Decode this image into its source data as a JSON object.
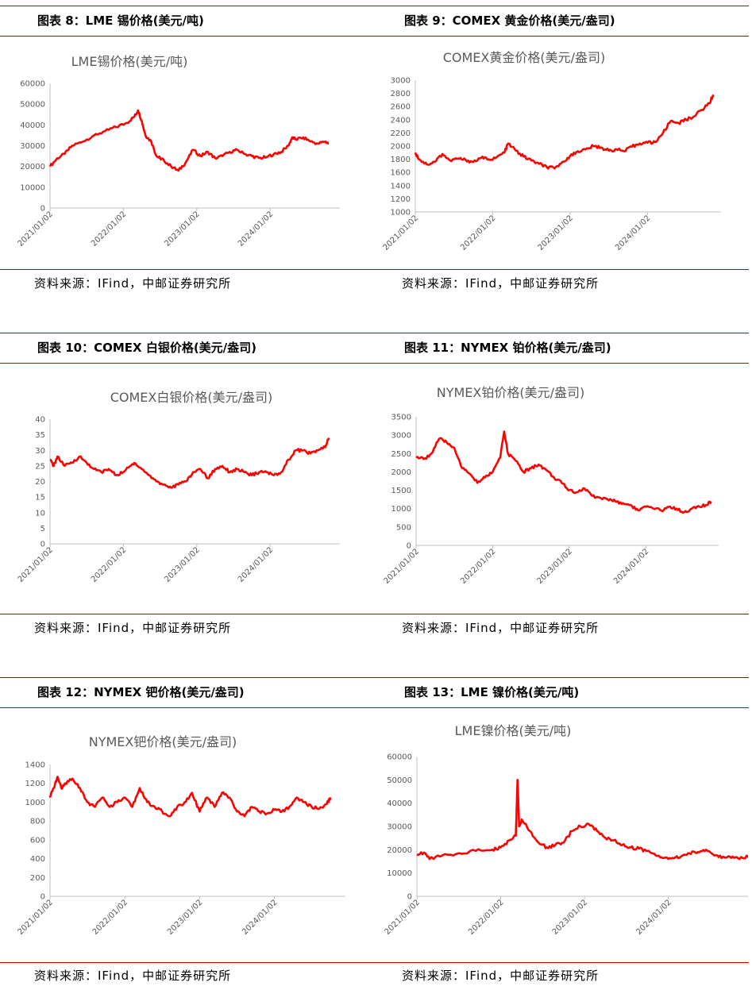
{
  "colors": {
    "series": "#ff0000",
    "rule": "#c00000",
    "axis_text": "#595959"
  },
  "source_text": "资料来源：IFind，中邮证券研究所",
  "charts": [
    {
      "caption": "图表 8：LME 锡价格(美元/吨)"
    },
    {
      "caption": "图表 9：COMEX 黄金价格(美元/盎司)"
    },
    {
      "caption": "图表 10：COMEX 白银价格(美元/盎司)"
    },
    {
      "caption": "图表 11：NYMEX 铂价格(美元/盎司)"
    },
    {
      "caption": "图表 12：NYMEX 钯价格(美元/盎司)"
    },
    {
      "caption": "图表 13：LME 镍价格(美元/吨)"
    }
  ],
  "chart_data": [
    {
      "type": "line",
      "title": "LME锡价格(美元/吨)",
      "x_ticks": [
        "2021/01/02",
        "2022/01/02",
        "2023/01/02",
        "2024/01/02"
      ],
      "ylim": [
        0,
        60000
      ],
      "y_ticks": [
        0,
        10000,
        20000,
        30000,
        40000,
        50000,
        60000
      ],
      "grid": false,
      "series": [
        {
          "x": [
            2021.0,
            2021.1,
            2021.2,
            2021.3,
            2021.45,
            2021.6,
            2021.75,
            2021.9,
            2022.05,
            2022.15,
            2022.2,
            2022.25,
            2022.3,
            2022.38,
            2022.45,
            2022.5,
            2022.55,
            2022.65,
            2022.75,
            2022.85,
            2022.95,
            2023.05,
            2023.15,
            2023.25,
            2023.35,
            2023.45,
            2023.55,
            2023.65,
            2023.75,
            2023.85,
            2023.95,
            2024.05,
            2024.15,
            2024.25,
            2024.3,
            2024.35,
            2024.45,
            2024.55,
            2024.65,
            2024.75,
            2024.8
          ],
          "y": [
            20000,
            24000,
            26000,
            30000,
            32000,
            35000,
            37000,
            39000,
            41000,
            44000,
            47000,
            42000,
            35000,
            32000,
            25000,
            24000,
            23000,
            20000,
            18000,
            22000,
            28000,
            25000,
            27000,
            24000,
            25000,
            27000,
            28000,
            26000,
            25000,
            24000,
            24500,
            26000,
            27000,
            30000,
            34000,
            33000,
            34000,
            32000,
            31000,
            32000,
            31000
          ]
        }
      ]
    },
    {
      "type": "line",
      "title": "COMEX黄金价格(美元/盎司)",
      "x_ticks": [
        "2021/01/02",
        "2022/01/02",
        "2023/01/02",
        "2024/01/02"
      ],
      "ylim": [
        1000,
        3000
      ],
      "y_ticks": [
        1000,
        1200,
        1400,
        1600,
        1800,
        2000,
        2200,
        2400,
        2600,
        2800,
        3000
      ],
      "grid": false,
      "series": [
        {
          "x": [
            2021.0,
            2021.05,
            2021.15,
            2021.25,
            2021.35,
            2021.45,
            2021.55,
            2021.65,
            2021.75,
            2021.85,
            2021.95,
            2022.05,
            2022.15,
            2022.2,
            2022.3,
            2022.4,
            2022.5,
            2022.6,
            2022.7,
            2022.8,
            2022.9,
            2023.0,
            2023.1,
            2023.2,
            2023.3,
            2023.4,
            2023.5,
            2023.6,
            2023.7,
            2023.8,
            2023.9,
            2024.0,
            2024.1,
            2024.2,
            2024.3,
            2024.4,
            2024.5,
            2024.6,
            2024.7,
            2024.8,
            2024.85
          ],
          "y": [
            1900,
            1800,
            1720,
            1760,
            1880,
            1780,
            1810,
            1790,
            1760,
            1820,
            1800,
            1830,
            1900,
            2040,
            1930,
            1840,
            1780,
            1730,
            1680,
            1660,
            1760,
            1850,
            1920,
            1950,
            2000,
            1980,
            1930,
            1950,
            1920,
            1990,
            2040,
            2050,
            2060,
            2200,
            2380,
            2350,
            2400,
            2450,
            2550,
            2650,
            2780
          ]
        }
      ]
    },
    {
      "type": "line",
      "title": "COMEX白银价格(美元/盎司)",
      "x_ticks": [
        "2021/01/02",
        "2022/01/02",
        "2023/01/02",
        "2024/01/02"
      ],
      "ylim": [
        0,
        40
      ],
      "y_ticks": [
        0,
        5,
        10,
        15,
        20,
        25,
        30,
        35,
        40
      ],
      "grid": false,
      "series": [
        {
          "x": [
            2021.0,
            2021.05,
            2021.1,
            2021.2,
            2021.3,
            2021.4,
            2021.5,
            2021.6,
            2021.7,
            2021.8,
            2021.9,
            2022.0,
            2022.1,
            2022.15,
            2022.25,
            2022.35,
            2022.45,
            2022.55,
            2022.65,
            2022.75,
            2022.85,
            2022.95,
            2023.05,
            2023.15,
            2023.25,
            2023.35,
            2023.45,
            2023.55,
            2023.65,
            2023.75,
            2023.85,
            2023.95,
            2024.05,
            2024.15,
            2024.25,
            2024.35,
            2024.45,
            2024.55,
            2024.65,
            2024.75,
            2024.8
          ],
          "y": [
            27,
            25,
            28,
            25,
            26,
            28,
            26,
            24,
            23,
            24,
            22,
            23,
            25,
            26,
            24,
            22,
            20,
            19,
            18,
            19,
            20,
            23,
            24,
            21,
            24,
            25,
            23,
            24,
            23,
            22,
            23,
            23,
            22,
            23,
            27,
            30,
            30,
            29,
            30,
            31,
            34
          ]
        }
      ]
    },
    {
      "type": "line",
      "title": "NYMEX铂价格(美元/盎司)",
      "x_ticks": [
        "2021/01/02",
        "2022/01/02",
        "2023/01/02",
        "2024/01/02"
      ],
      "ylim": [
        0,
        3500
      ],
      "y_ticks": [
        0,
        500,
        1000,
        1500,
        2000,
        2500,
        3000,
        3500
      ],
      "grid": false,
      "series": [
        {
          "x": [
            2021.0,
            2021.1,
            2021.2,
            2021.3,
            2021.4,
            2021.5,
            2021.6,
            2021.7,
            2021.8,
            2021.9,
            2022.0,
            2022.1,
            2022.15,
            2022.2,
            2022.3,
            2022.4,
            2022.5,
            2022.6,
            2022.7,
            2022.8,
            2022.9,
            2023.0,
            2023.1,
            2023.2,
            2023.3,
            2023.4,
            2023.5,
            2023.6,
            2023.7,
            2023.8,
            2023.9,
            2024.0,
            2024.1,
            2024.2,
            2024.3,
            2024.4,
            2024.5,
            2024.6,
            2024.7,
            2024.8,
            2024.85
          ],
          "y": [
            2400,
            2350,
            2500,
            2900,
            2800,
            2650,
            2100,
            1950,
            1700,
            1850,
            2000,
            2400,
            3100,
            2500,
            2300,
            2000,
            2100,
            2200,
            2050,
            1850,
            1700,
            1500,
            1450,
            1550,
            1350,
            1300,
            1250,
            1200,
            1150,
            1100,
            950,
            1050,
            1000,
            950,
            1050,
            1000,
            900,
            1000,
            1050,
            1100,
            1200
          ]
        }
      ]
    },
    {
      "type": "line",
      "title": "NYMEX钯价格(美元/盎司)",
      "x_ticks": [
        "2021/01/02",
        "2022/01/02",
        "2023/01/02",
        "2024/01/02"
      ],
      "ylim": [
        0,
        1400
      ],
      "y_ticks": [
        0,
        200,
        400,
        600,
        800,
        1000,
        1200,
        1400
      ],
      "grid": false,
      "series": [
        {
          "x": [
            2021.0,
            2021.05,
            2021.1,
            2021.15,
            2021.2,
            2021.3,
            2021.4,
            2021.5,
            2021.6,
            2021.7,
            2021.8,
            2021.9,
            2022.0,
            2022.1,
            2022.2,
            2022.3,
            2022.4,
            2022.5,
            2022.6,
            2022.7,
            2022.8,
            2022.9,
            2023.0,
            2023.1,
            2023.2,
            2023.3,
            2023.4,
            2023.5,
            2023.6,
            2023.7,
            2023.8,
            2023.9,
            2024.0,
            2024.1,
            2024.2,
            2024.3,
            2024.4,
            2024.5,
            2024.6,
            2024.7,
            2024.75
          ],
          "y": [
            1050,
            1150,
            1270,
            1150,
            1200,
            1250,
            1150,
            1000,
            950,
            1050,
            950,
            1000,
            1050,
            950,
            1150,
            1000,
            950,
            900,
            850,
            950,
            1000,
            1100,
            900,
            1050,
            950,
            1100,
            1050,
            900,
            850,
            950,
            900,
            880,
            920,
            900,
            950,
            1050,
            1000,
            950,
            930,
            980,
            1050
          ]
        }
      ]
    },
    {
      "type": "line",
      "title": "LME镍价格(美元/吨)",
      "x_ticks": [
        "2021/01/02",
        "2022/01/02",
        "2023/01/02",
        "2024/01/02"
      ],
      "ylim": [
        0,
        60000
      ],
      "y_ticks": [
        0,
        10000,
        20000,
        30000,
        40000,
        50000,
        60000
      ],
      "grid": false,
      "series": [
        {
          "x": [
            2021.0,
            2021.1,
            2021.15,
            2021.3,
            2021.5,
            2021.7,
            2021.9,
            2022.0,
            2022.1,
            2022.18,
            2022.2,
            2022.22,
            2022.25,
            2022.35,
            2022.45,
            2022.55,
            2022.65,
            2022.75,
            2022.85,
            2022.95,
            2023.05,
            2023.15,
            2023.25,
            2023.35,
            2023.45,
            2023.55,
            2023.65,
            2023.75,
            2023.85,
            2023.95,
            2024.05,
            2024.15,
            2024.25,
            2024.35,
            2024.45,
            2024.55,
            2024.65,
            2024.75,
            2024.85,
            2024.95,
            2025.0
          ],
          "y": [
            18000,
            18500,
            16000,
            17500,
            18500,
            19500,
            20000,
            21000,
            24000,
            26000,
            50000,
            30000,
            33000,
            28000,
            23000,
            21000,
            22000,
            23000,
            28000,
            30000,
            31000,
            28000,
            25000,
            24000,
            22000,
            21000,
            20500,
            19500,
            17500,
            16500,
            16500,
            17000,
            18500,
            19000,
            20000,
            17500,
            17000,
            16500,
            16000,
            17000,
            15500
          ]
        }
      ]
    }
  ]
}
